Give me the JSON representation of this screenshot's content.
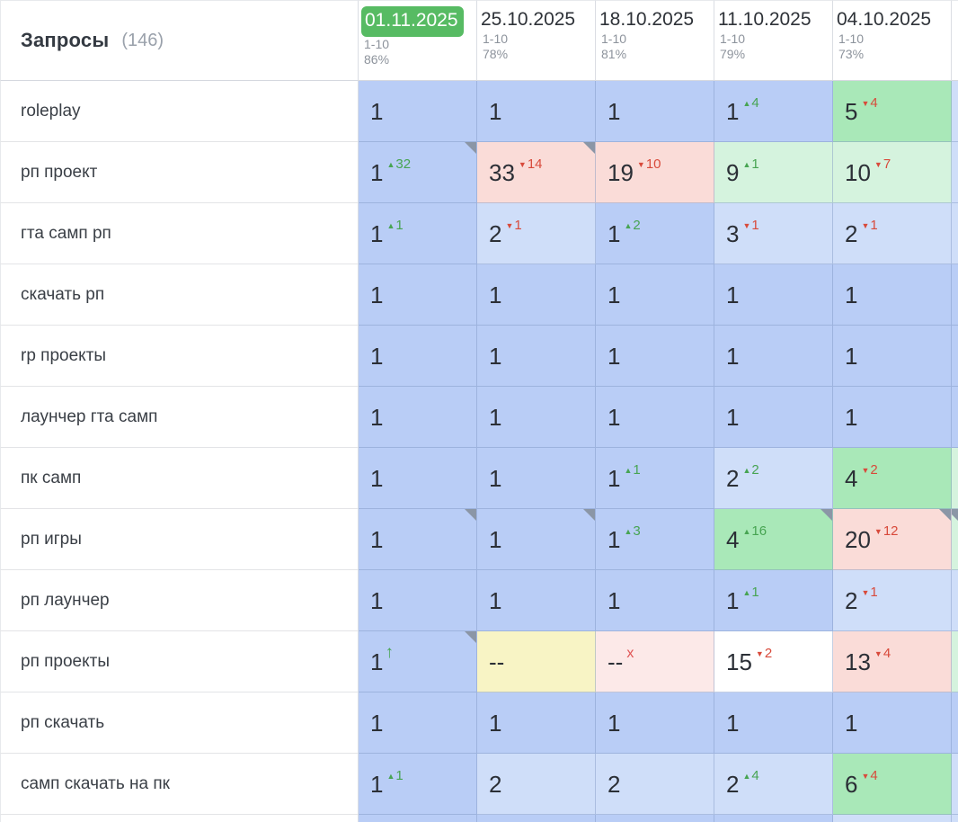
{
  "header": {
    "title": "Запросы",
    "count": "(146)"
  },
  "columns": [
    {
      "date": "01.11.2025",
      "range": "1-10",
      "percent": "86%",
      "highlighted": true
    },
    {
      "date": "25.10.2025",
      "range": "1-10",
      "percent": "78%",
      "highlighted": false
    },
    {
      "date": "18.10.2025",
      "range": "1-10",
      "percent": "81%",
      "highlighted": false
    },
    {
      "date": "11.10.2025",
      "range": "1-10",
      "percent": "79%",
      "highlighted": false
    },
    {
      "date": "04.10.2025",
      "range": "1-10",
      "percent": "73%",
      "highlighted": false
    }
  ],
  "colors": {
    "badge_green": "#57bb63",
    "cell_blue": "#b9cdf6",
    "cell_lightblue": "#cfdef9",
    "cell_green": "#a9e8b8",
    "cell_palegreen": "#d5f3de",
    "cell_pink": "#fadcd8",
    "cell_pinklight": "#fce9e8",
    "cell_yellow": "#f8f4c5",
    "cell_white": "#ffffff",
    "up_green": "#47a452",
    "down_red": "#d84a3b"
  },
  "rows": [
    {
      "query": "roleplay",
      "sliver": "lightblue",
      "sliver_note": false,
      "cells": [
        {
          "v": "1",
          "bg": "blue"
        },
        {
          "v": "1",
          "bg": "blue"
        },
        {
          "v": "1",
          "bg": "blue"
        },
        {
          "v": "1",
          "bg": "blue",
          "dir": "up",
          "d": "4"
        },
        {
          "v": "5",
          "bg": "green",
          "dir": "down",
          "d": "4"
        }
      ]
    },
    {
      "query": "рп проект",
      "sliver": "lightblue",
      "sliver_note": false,
      "cells": [
        {
          "v": "1",
          "bg": "blue",
          "dir": "up",
          "d": "32",
          "note": true
        },
        {
          "v": "33",
          "bg": "pink",
          "dir": "down",
          "d": "14",
          "note": true
        },
        {
          "v": "19",
          "bg": "pink",
          "dir": "down",
          "d": "10"
        },
        {
          "v": "9",
          "bg": "palegreen",
          "dir": "up",
          "d": "1"
        },
        {
          "v": "10",
          "bg": "palegreen",
          "dir": "down",
          "d": "7"
        }
      ]
    },
    {
      "query": "гта самп рп",
      "sliver": "lightblue",
      "sliver_note": false,
      "cells": [
        {
          "v": "1",
          "bg": "blue",
          "dir": "up",
          "d": "1"
        },
        {
          "v": "2",
          "bg": "lightblue",
          "dir": "down",
          "d": "1"
        },
        {
          "v": "1",
          "bg": "blue",
          "dir": "up",
          "d": "2"
        },
        {
          "v": "3",
          "bg": "lightblue",
          "dir": "down",
          "d": "1"
        },
        {
          "v": "2",
          "bg": "lightblue",
          "dir": "down",
          "d": "1"
        }
      ]
    },
    {
      "query": "скачать рп",
      "sliver": "blue",
      "sliver_note": false,
      "cells": [
        {
          "v": "1",
          "bg": "blue"
        },
        {
          "v": "1",
          "bg": "blue"
        },
        {
          "v": "1",
          "bg": "blue"
        },
        {
          "v": "1",
          "bg": "blue"
        },
        {
          "v": "1",
          "bg": "blue"
        }
      ]
    },
    {
      "query": "rp проекты",
      "sliver": "blue",
      "sliver_note": false,
      "cells": [
        {
          "v": "1",
          "bg": "blue"
        },
        {
          "v": "1",
          "bg": "blue"
        },
        {
          "v": "1",
          "bg": "blue"
        },
        {
          "v": "1",
          "bg": "blue"
        },
        {
          "v": "1",
          "bg": "blue"
        }
      ]
    },
    {
      "query": "лаунчер гта самп",
      "sliver": "blue",
      "sliver_note": false,
      "cells": [
        {
          "v": "1",
          "bg": "blue"
        },
        {
          "v": "1",
          "bg": "blue"
        },
        {
          "v": "1",
          "bg": "blue"
        },
        {
          "v": "1",
          "bg": "blue"
        },
        {
          "v": "1",
          "bg": "blue"
        }
      ]
    },
    {
      "query": "пк самп",
      "sliver": "palegreen",
      "sliver_note": false,
      "cells": [
        {
          "v": "1",
          "bg": "blue"
        },
        {
          "v": "1",
          "bg": "blue"
        },
        {
          "v": "1",
          "bg": "blue",
          "dir": "up",
          "d": "1"
        },
        {
          "v": "2",
          "bg": "lightblue",
          "dir": "up",
          "d": "2"
        },
        {
          "v": "4",
          "bg": "green",
          "dir": "down",
          "d": "2"
        }
      ]
    },
    {
      "query": "рп игры",
      "sliver": "palegreen",
      "sliver_note": true,
      "cells": [
        {
          "v": "1",
          "bg": "blue",
          "note": true
        },
        {
          "v": "1",
          "bg": "blue",
          "note": true
        },
        {
          "v": "1",
          "bg": "blue",
          "dir": "up",
          "d": "3"
        },
        {
          "v": "4",
          "bg": "green",
          "dir": "up",
          "d": "16",
          "note": true
        },
        {
          "v": "20",
          "bg": "pink",
          "dir": "down",
          "d": "12",
          "note": true
        }
      ]
    },
    {
      "query": "рп лаунчер",
      "sliver": "lightblue",
      "sliver_note": false,
      "cells": [
        {
          "v": "1",
          "bg": "blue"
        },
        {
          "v": "1",
          "bg": "blue"
        },
        {
          "v": "1",
          "bg": "blue"
        },
        {
          "v": "1",
          "bg": "blue",
          "dir": "up",
          "d": "1"
        },
        {
          "v": "2",
          "bg": "lightblue",
          "dir": "down",
          "d": "1"
        }
      ]
    },
    {
      "query": "рп проекты",
      "sliver": "palegreen",
      "sliver_note": false,
      "cells": [
        {
          "v": "1",
          "bg": "blue",
          "dir": "arrow",
          "d": "↑",
          "note": true
        },
        {
          "v": "--",
          "bg": "yellow"
        },
        {
          "v": "--",
          "bg": "pinklight",
          "dir": "x",
          "d": "x"
        },
        {
          "v": "15",
          "bg": "white",
          "dir": "down",
          "d": "2"
        },
        {
          "v": "13",
          "bg": "pink",
          "dir": "down",
          "d": "4"
        }
      ]
    },
    {
      "query": "рп скачать",
      "sliver": "blue",
      "sliver_note": false,
      "cells": [
        {
          "v": "1",
          "bg": "blue"
        },
        {
          "v": "1",
          "bg": "blue"
        },
        {
          "v": "1",
          "bg": "blue"
        },
        {
          "v": "1",
          "bg": "blue"
        },
        {
          "v": "1",
          "bg": "blue"
        }
      ]
    },
    {
      "query": "самп скачать на пк",
      "sliver": "lightblue",
      "sliver_note": false,
      "cells": [
        {
          "v": "1",
          "bg": "blue",
          "dir": "up",
          "d": "1"
        },
        {
          "v": "2",
          "bg": "lightblue"
        },
        {
          "v": "2",
          "bg": "lightblue"
        },
        {
          "v": "2",
          "bg": "lightblue",
          "dir": "up",
          "d": "4"
        },
        {
          "v": "6",
          "bg": "green",
          "dir": "down",
          "d": "4"
        }
      ]
    },
    {
      "query": "",
      "partial": true,
      "sliver": "lightblue",
      "sliver_note": false,
      "cells": [
        {
          "v": "",
          "bg": "blue"
        },
        {
          "v": "",
          "bg": "blue"
        },
        {
          "v": "",
          "bg": "blue"
        },
        {
          "v": "",
          "bg": "blue"
        },
        {
          "v": "",
          "bg": "lightblue"
        }
      ]
    }
  ]
}
